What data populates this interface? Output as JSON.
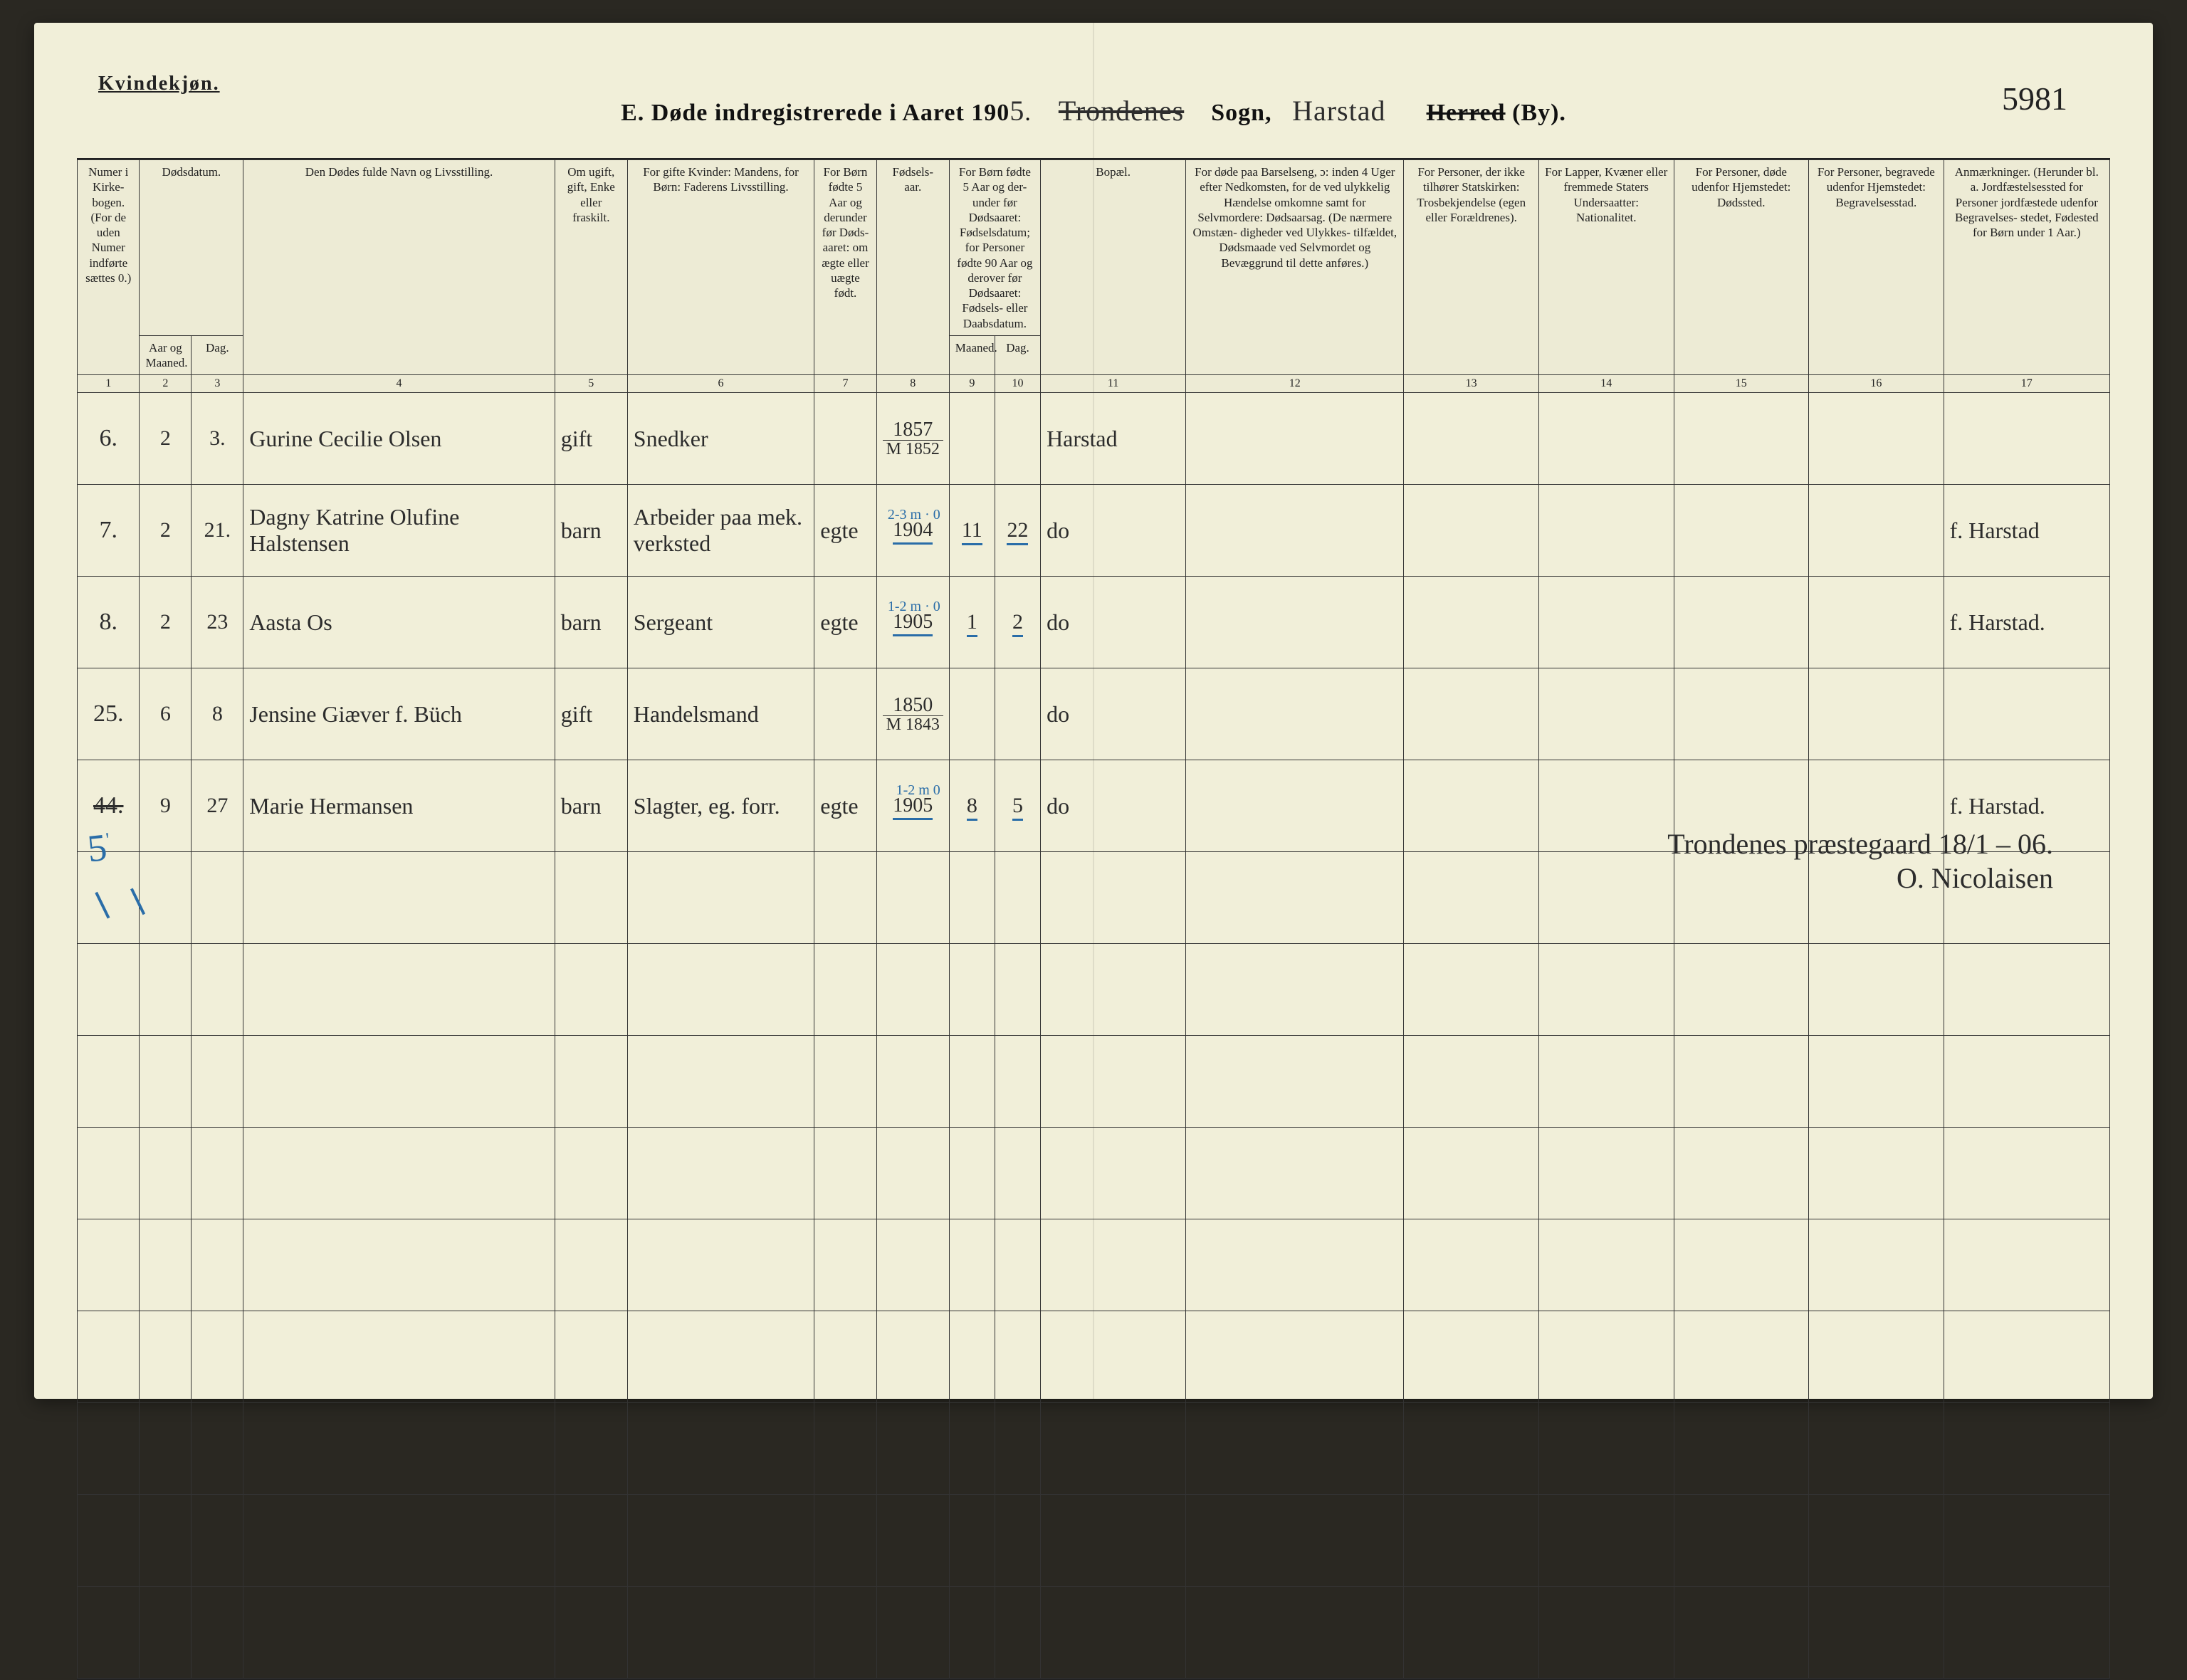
{
  "colors": {
    "paper": "#f1efd9",
    "ink": "#222222",
    "script": "#2c2c2c",
    "pencil_blue": "#2a6da8",
    "rule": "#333333",
    "backdrop": "#2a2822"
  },
  "typography": {
    "printed_family": "Georgia, 'Times New Roman', serif",
    "script_family": "'Brush Script MT', 'Segoe Script', cursive",
    "header_size_pt": 17,
    "body_script_size_pt": 32
  },
  "header": {
    "gender": "Kvindekjøn.",
    "title_prefix": "E.  Døde indregistrerede i Aaret 190",
    "year_last_digit": "5",
    "parish_script": "Trondenes",
    "sogn_label": "Sogn,",
    "district_script": "Harstad",
    "herred_struck": "Herred",
    "by_label": "(By).",
    "serial": "5981"
  },
  "columns": {
    "labels": [
      "Numer i Kirke-\nbogen.\n(For de uden Numer indførte sættes 0.)",
      "Aar og Maaned.",
      "Dag.",
      "Den Dødes fulde Navn og Livsstilling.",
      "Om ugift, gift, Enke eller fraskilt.",
      "For gifte Kvinder:\nMandens,\nfor Børn:\nFaderens Livsstilling.",
      "For Børn fødte 5 Aar og derunder før Døds-\naaret: om ægte eller uægte født.",
      "Fødsels-\naar.",
      "Maaned.",
      "Dag.",
      "Bopæl.",
      "For døde paa Barselseng, ɔ: inden 4 Uger efter Nedkomsten,\nfor de ved ulykkelig Hændelse omkomne samt for Selvmordere:\nDødsaarsag.\n(De nærmere Omstæn-\ndigheder ved Ulykkes-\ntilfældet, Dødsmaade ved Selvmordet og Bevæggrund til dette anføres.)",
      "For Personer, der ikke tilhører Statskirken:\nTrosbekjendelse (egen eller Forældrenes).",
      "For Lapper, Kvæner eller fremmede Staters Undersaatter:\nNationalitet.",
      "For Personer, døde udenfor Hjemstedet:\nDødssted.",
      "For Personer, begravede udenfor Hjemstedet:\nBegravelsesstad.",
      "Anmærkninger.\n(Herunder bl. a. Jordfæstelsessted for Personer jordfæstede udenfor Begravelses-\nstedet, Fødested for Børn under 1 Aar.)"
    ],
    "group_header_910": "For Børn fødte 5 Aar og der-\nunder før Dødsaaret:\nFødselsdatum;\nfor Personer fødte 90 Aar og derover før Dødsaaret:\nFødsels- eller Daabsdatum.",
    "group_header_23": "Dødsdatum.",
    "numbers": [
      "1",
      "2",
      "3",
      "4",
      "5",
      "6",
      "7",
      "8",
      "9",
      "10",
      "11",
      "12",
      "13",
      "14",
      "15",
      "16",
      "17"
    ]
  },
  "rows": [
    {
      "no": "6.",
      "month": "2",
      "day": "3.",
      "name": "Gurine Cecilie Olsen",
      "status": "gift",
      "occupation": "Snedker",
      "legit": "",
      "birth_year": "1857",
      "birth_year_sub": "M 1852",
      "b_month": "",
      "b_day": "",
      "age_top": "",
      "residence": "Harstad",
      "remark": ""
    },
    {
      "no": "7.",
      "month": "2",
      "day": "21.",
      "name": "Dagny Katrine Olufine Halstensen",
      "status": "barn",
      "occupation": "Arbeider paa mek. verksted",
      "legit": "egte",
      "birth_year": "1904",
      "birth_year_sub": "",
      "b_month": "11",
      "b_day": "22",
      "age_top": "2-3 m · 0",
      "residence": "do",
      "remark": "f. Harstad"
    },
    {
      "no": "8.",
      "month": "2",
      "day": "23",
      "name": "Aasta Os",
      "status": "barn",
      "occupation": "Sergeant",
      "legit": "egte",
      "birth_year": "1905",
      "birth_year_sub": "",
      "b_month": "1",
      "b_day": "2",
      "age_top": "1-2 m · 0",
      "residence": "do",
      "remark": "f. Harstad."
    },
    {
      "no": "25.",
      "month": "6",
      "day": "8",
      "name": "Jensine Giæver f. Büch",
      "status": "gift",
      "occupation": "Handelsmand",
      "legit": "",
      "birth_year": "1850",
      "birth_year_sub": "M 1843",
      "b_month": "",
      "b_day": "",
      "age_top": "",
      "residence": "do",
      "remark": ""
    },
    {
      "no": "44.",
      "no_struck": true,
      "month": "9",
      "day": "27",
      "name": "Marie Hermansen",
      "status": "barn",
      "occupation": "Slagter, eg. forr.",
      "legit": "egte",
      "birth_year": "1905",
      "birth_year_sub": "",
      "b_month": "8",
      "b_day": "5",
      "age_top": "1-2 m  0",
      "residence": "do",
      "remark": "f. Harstad."
    }
  ],
  "blank_rows": 9,
  "footer": {
    "place_date": "Trondenes præstegaard 18/1 – 06.",
    "signature": "O. Nicolaisen"
  },
  "blue_tally": "5"
}
